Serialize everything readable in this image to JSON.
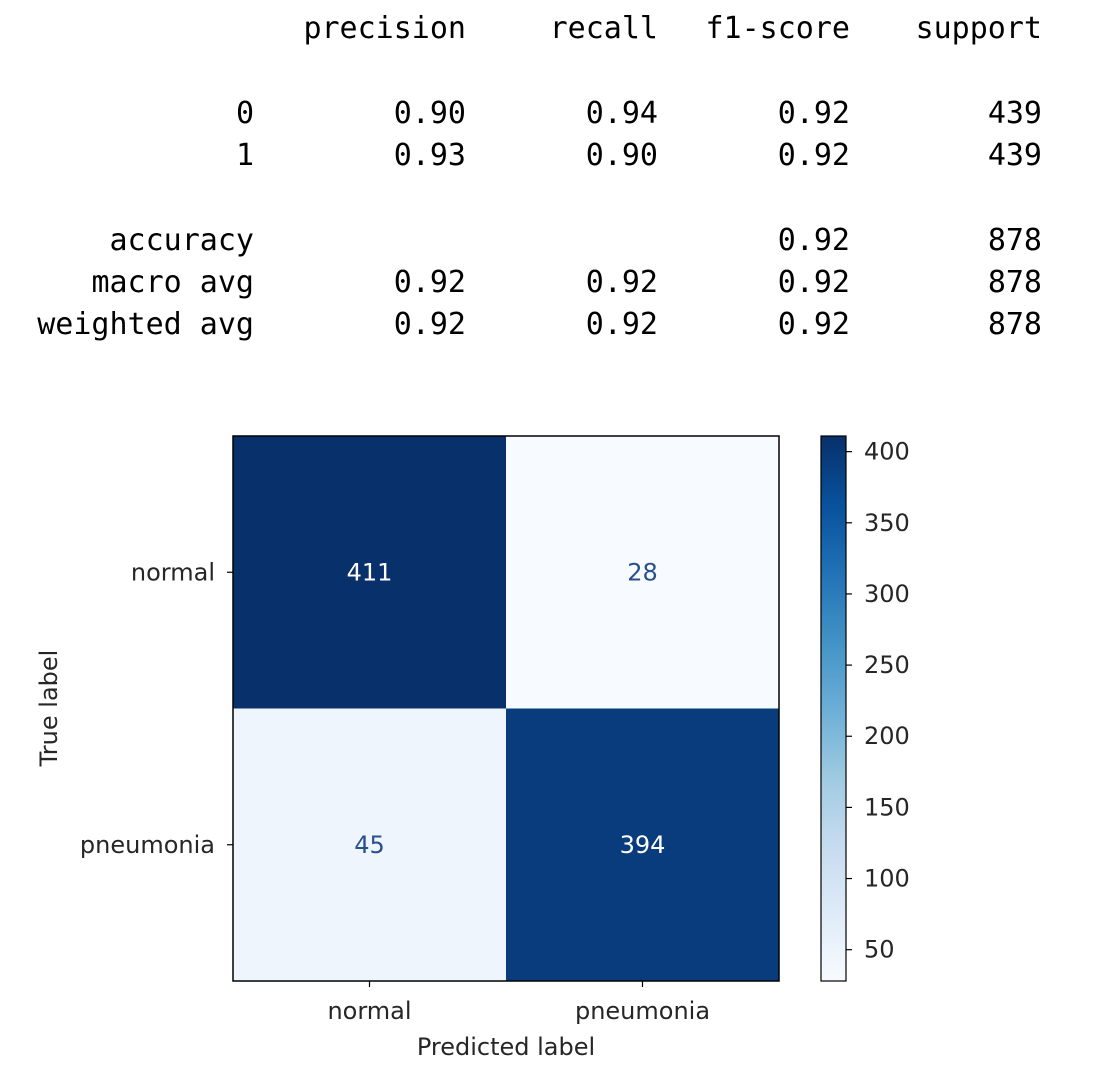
{
  "report": {
    "headers": [
      "precision",
      "recall",
      "f1-score",
      "support"
    ],
    "rows": [
      {
        "label": "0",
        "precision": "0.90",
        "recall": "0.94",
        "f1": "0.92",
        "support": "439"
      },
      {
        "label": "1",
        "precision": "0.93",
        "recall": "0.90",
        "f1": "0.92",
        "support": "439"
      },
      {
        "label": "accuracy",
        "precision": "",
        "recall": "",
        "f1": "0.92",
        "support": "878"
      },
      {
        "label": "macro avg",
        "precision": "0.92",
        "recall": "0.92",
        "f1": "0.92",
        "support": "878"
      },
      {
        "label": "weighted avg",
        "precision": "0.92",
        "recall": "0.92",
        "f1": "0.92",
        "support": "878"
      }
    ]
  },
  "chart_data": {
    "type": "heatmap",
    "title": "",
    "xlabel": "Predicted label",
    "ylabel": "True label",
    "x_categories": [
      "normal",
      "pneumonia"
    ],
    "y_categories": [
      "normal",
      "pneumonia"
    ],
    "matrix": [
      [
        411,
        28
      ],
      [
        45,
        394
      ]
    ],
    "colormap": "Blues",
    "colorbar": {
      "min": 28,
      "max": 411,
      "ticks": [
        50,
        100,
        150,
        200,
        250,
        300,
        350,
        400
      ]
    },
    "colors": {
      "dark": "#08306b",
      "light": "#f7fbff",
      "text_dark": "#2a4f8e",
      "text_light": "#ffffff"
    }
  }
}
